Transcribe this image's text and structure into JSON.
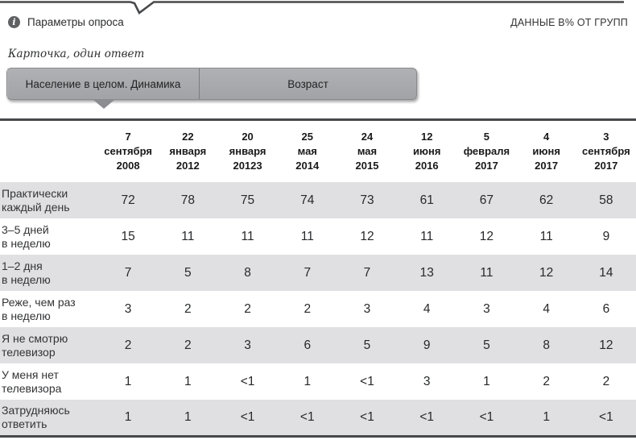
{
  "header": {
    "survey_params_label": "Параметры опроса",
    "data_note": "ДАННЫЕ В% ОТ ГРУПП"
  },
  "icons": {
    "info_glyph": "i"
  },
  "question_hint": "Карточка, один ответ",
  "tabs": {
    "population_dynamics": "Население в целом. Динамика",
    "age": "Возраст"
  },
  "colors": {
    "accent_line": "#48494b",
    "tab_gray": "#a7a8ab",
    "row_shade": "#e0e0e2"
  },
  "chart_data": {
    "type": "table",
    "columns": [
      "7\nсентября\n2008",
      "22\nянваря\n2012",
      "20\nянваря\n20123",
      "25\nмая\n2014",
      "24\nмая\n2015",
      "12\nиюня\n2016",
      "5\nфевраля\n2017",
      "4\nиюня\n2017",
      "3\nсентября\n2017"
    ],
    "rows": [
      {
        "label": "Практически\nкаждый день",
        "values": [
          "72",
          "78",
          "75",
          "74",
          "73",
          "61",
          "67",
          "62",
          "58"
        ]
      },
      {
        "label": "3–5 дней\nв неделю",
        "values": [
          "15",
          "11",
          "11",
          "11",
          "12",
          "11",
          "12",
          "11",
          "9"
        ]
      },
      {
        "label": "1–2 дня\nв неделю",
        "values": [
          "7",
          "5",
          "8",
          "7",
          "7",
          "13",
          "11",
          "12",
          "14"
        ]
      },
      {
        "label": "Реже, чем раз\nв неделю",
        "values": [
          "3",
          "2",
          "2",
          "2",
          "3",
          "4",
          "3",
          "4",
          "6"
        ]
      },
      {
        "label": "Я не смотрю\nтелевизор",
        "values": [
          "2",
          "2",
          "3",
          "6",
          "5",
          "9",
          "5",
          "8",
          "12"
        ]
      },
      {
        "label": "У меня нет\nтелевизора",
        "values": [
          "1",
          "1",
          "<1",
          "1",
          "<1",
          "3",
          "1",
          "2",
          "2"
        ]
      },
      {
        "label": "Затрудняюсь\nответить",
        "values": [
          "1",
          "1",
          "<1",
          "<1",
          "<1",
          "<1",
          "<1",
          "1",
          "<1"
        ]
      }
    ]
  }
}
